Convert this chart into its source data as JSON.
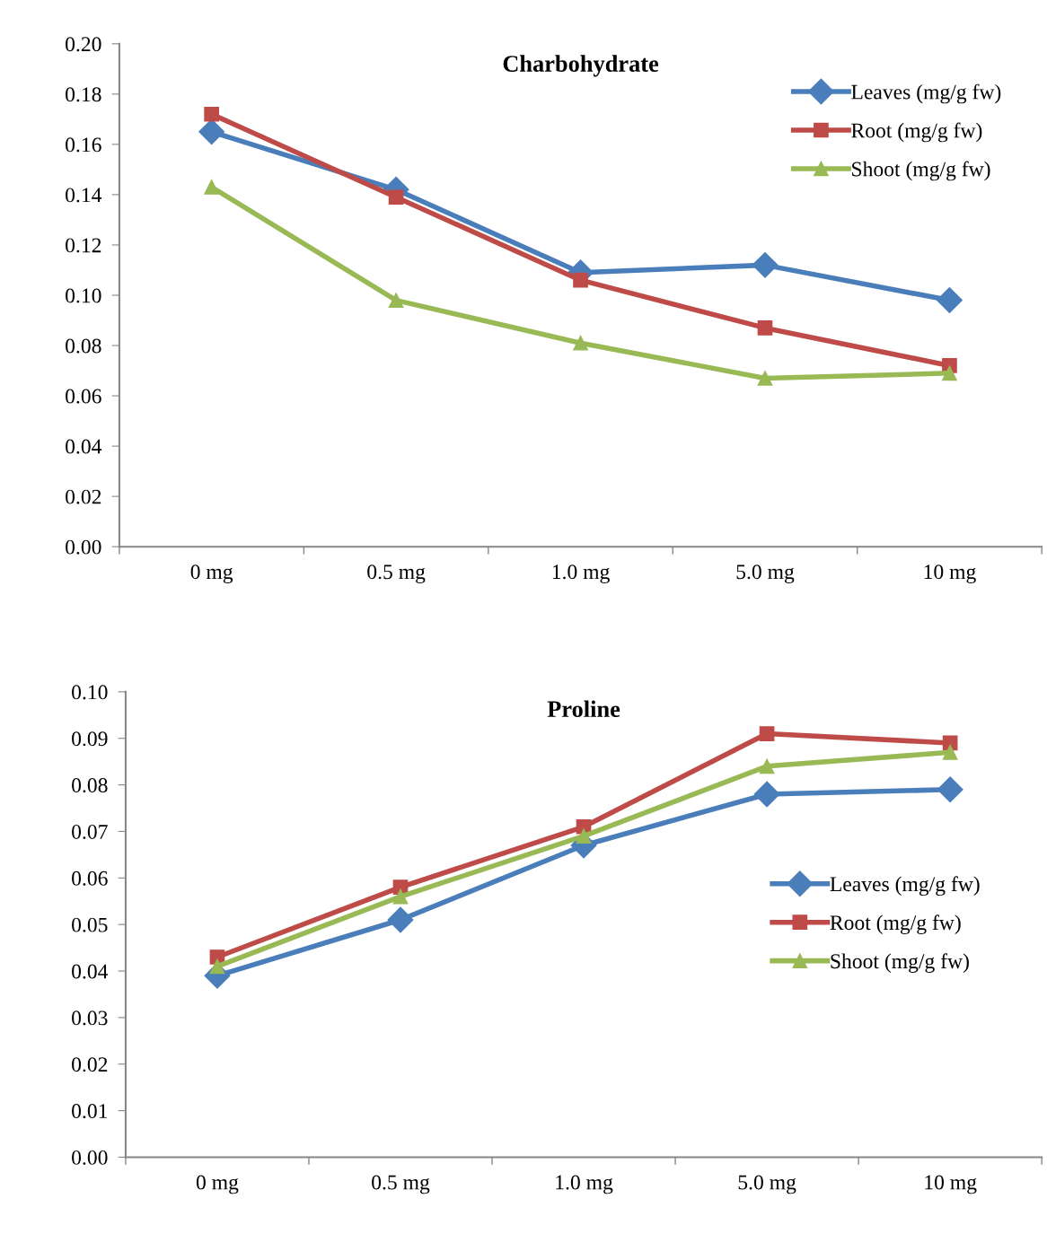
{
  "chart_data": [
    {
      "type": "line",
      "title": "Charbohydrate",
      "categories": [
        "0 mg",
        "0.5 mg",
        "1.0 mg",
        "5.0 mg",
        "10 mg"
      ],
      "series": [
        {
          "name": "Leaves (mg/g fw)",
          "color": "#4a7ebb",
          "marker": "diamond",
          "values": [
            0.165,
            0.142,
            0.109,
            0.112,
            0.098
          ]
        },
        {
          "name": "Root (mg/g fw)",
          "color": "#be4b48",
          "marker": "square",
          "values": [
            0.172,
            0.139,
            0.106,
            0.087,
            0.072
          ]
        },
        {
          "name": "Shoot (mg/g fw)",
          "color": "#98b954",
          "marker": "triangle",
          "values": [
            0.143,
            0.098,
            0.081,
            0.067,
            0.069
          ]
        }
      ],
      "ylim": [
        0,
        0.2
      ],
      "yticks": [
        {
          "value": 0,
          "label": "0.00"
        },
        {
          "value": 0.02,
          "label": "0.02"
        },
        {
          "value": 0.04,
          "label": "0.04"
        },
        {
          "value": 0.06,
          "label": "0.06"
        },
        {
          "value": 0.08,
          "label": "0.08"
        },
        {
          "value": 0.1,
          "label": "0.10"
        },
        {
          "value": 0.12,
          "label": "0.12"
        },
        {
          "value": 0.14,
          "label": "0.14"
        },
        {
          "value": 0.16,
          "label": "0.16"
        },
        {
          "value": 0.18,
          "label": "0.18"
        },
        {
          "value": 0.2,
          "label": "0.20"
        }
      ],
      "grid": false,
      "legend": "top right",
      "line_style": "solid"
    },
    {
      "type": "line",
      "title": "Proline",
      "categories": [
        "0 mg",
        "0.5 mg",
        "1.0 mg",
        "5.0 mg",
        "10 mg"
      ],
      "series": [
        {
          "name": "Leaves (mg/g fw)",
          "color": "#4a7ebb",
          "marker": "diamond",
          "values": [
            0.039,
            0.051,
            0.067,
            0.078,
            0.079
          ]
        },
        {
          "name": "Root (mg/g fw)",
          "color": "#be4b48",
          "marker": "square",
          "values": [
            0.043,
            0.058,
            0.071,
            0.091,
            0.089
          ]
        },
        {
          "name": "Shoot (mg/g fw)",
          "color": "#98b954",
          "marker": "triangle",
          "values": [
            0.041,
            0.056,
            0.069,
            0.084,
            0.087
          ]
        }
      ],
      "ylim": [
        0,
        0.1
      ],
      "yticks": [
        {
          "value": 0,
          "label": "0.00"
        },
        {
          "value": 0.01,
          "label": "0.01"
        },
        {
          "value": 0.02,
          "label": "0.02"
        },
        {
          "value": 0.03,
          "label": "0.03"
        },
        {
          "value": 0.04,
          "label": "0.04"
        },
        {
          "value": 0.05,
          "label": "0.05"
        },
        {
          "value": 0.06,
          "label": "0.06"
        },
        {
          "value": 0.07,
          "label": "0.07"
        },
        {
          "value": 0.08,
          "label": "0.08"
        },
        {
          "value": 0.09,
          "label": "0.09"
        },
        {
          "value": 0.1,
          "label": "0.10"
        }
      ],
      "grid": false,
      "legend": "right",
      "line_style": "solid"
    }
  ]
}
